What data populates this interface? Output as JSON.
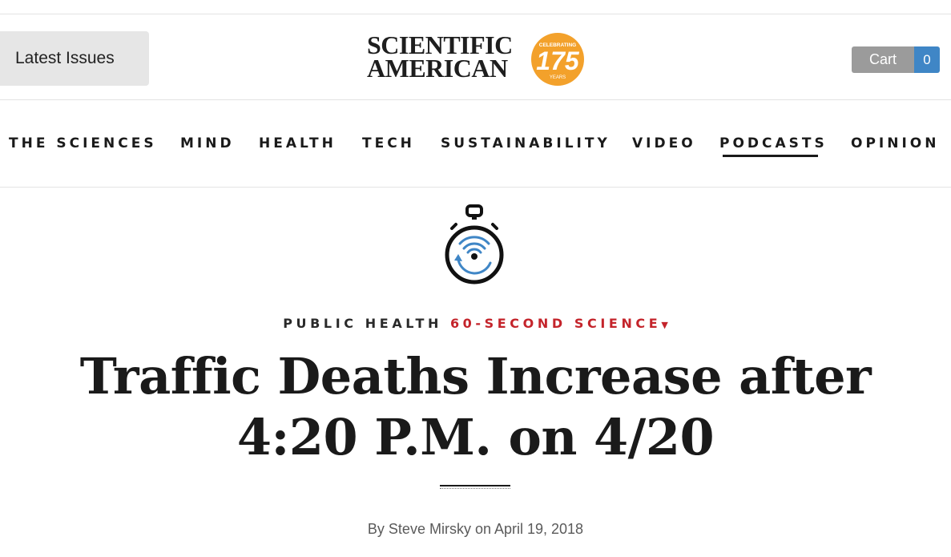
{
  "header": {
    "latest_issues_label": "Latest Issues",
    "logo": {
      "line1": "SCIENTIFIC",
      "line2": "AMERICAN",
      "badge_top": "CELEBRATING",
      "badge_number": "175",
      "badge_bottom": "YEARS",
      "badge_color": "#f3a12b"
    },
    "cart": {
      "label": "Cart",
      "count": "0"
    }
  },
  "nav": {
    "items": [
      {
        "label": "THE SCIENCES"
      },
      {
        "label": "MIND"
      },
      {
        "label": "HEALTH"
      },
      {
        "label": "TECH"
      },
      {
        "label": "SUSTAINABILITY"
      },
      {
        "label": "VIDEO"
      },
      {
        "label": "PODCASTS",
        "active": true
      },
      {
        "label": "OPINION"
      }
    ]
  },
  "article": {
    "icon": "stopwatch-podcast-icon",
    "category": "PUBLIC HEALTH",
    "series": "60-SECOND SCIENCE",
    "series_color": "#c4242b",
    "title": "Traffic Deaths Increase after 4:20 P.M. on 4/20",
    "byline": "By Steve Mirsky on April 19, 2018"
  },
  "colors": {
    "accent_blue": "#3f86c6",
    "cart_grey": "#9b9b9b",
    "text": "#1a1a1a"
  }
}
